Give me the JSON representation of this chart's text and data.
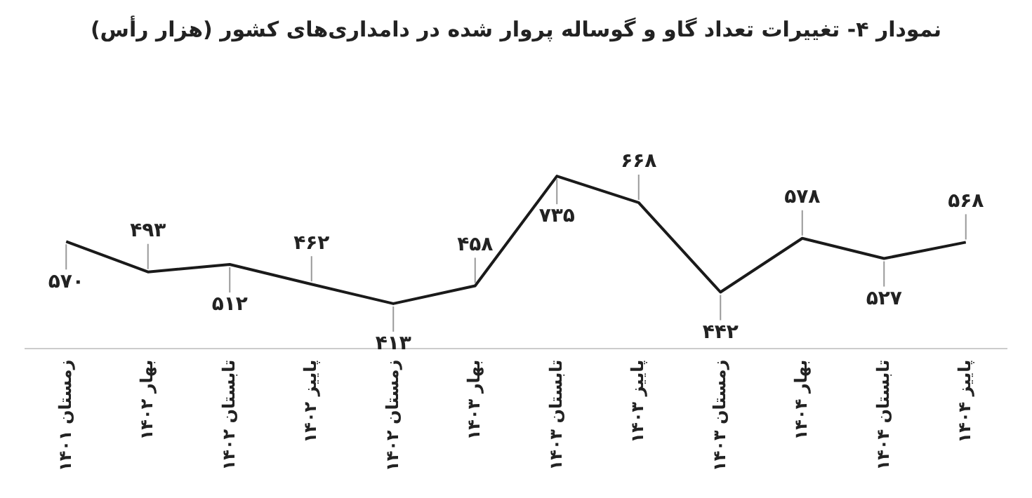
{
  "chart_data": {
    "type": "line",
    "title": "نمودار ۴- تغییرات تعداد گاو و گوساله پروار شده در دامداری‌های کشور (هزار رأس)",
    "categories": [
      "زمستان ۱۴۰۱",
      "بهار ۱۴۰۲",
      "تابستان ۱۴۰۲",
      "پاییز ۱۴۰۲",
      "زمستان ۱۴۰۲",
      "بهار ۱۴۰۳",
      "تابستان ۱۴۰۳",
      "پاییز ۱۴۰۳",
      "زمستان ۱۴۰۳",
      "بهار ۱۴۰۴",
      "تابستان ۱۴۰۴",
      "پاییز ۱۴۰۴"
    ],
    "series": [
      {
        "color": "#1a1a1a",
        "values": [
          570,
          493,
          512,
          462,
          413,
          458,
          735,
          668,
          442,
          578,
          527,
          568
        ],
        "value_labels": [
          "۵۷۰",
          "۴۹۳",
          "۵۱۲",
          "۴۶۲",
          "۴۱۳",
          "۴۵۸",
          "۷۳۵",
          "۶۶۸",
          "۴۴۲",
          "۵۷۸",
          "۵۲۷",
          "۵۶۸"
        ]
      }
    ],
    "marker": "none",
    "line_style": "solid",
    "grid": false,
    "legend": false
  }
}
